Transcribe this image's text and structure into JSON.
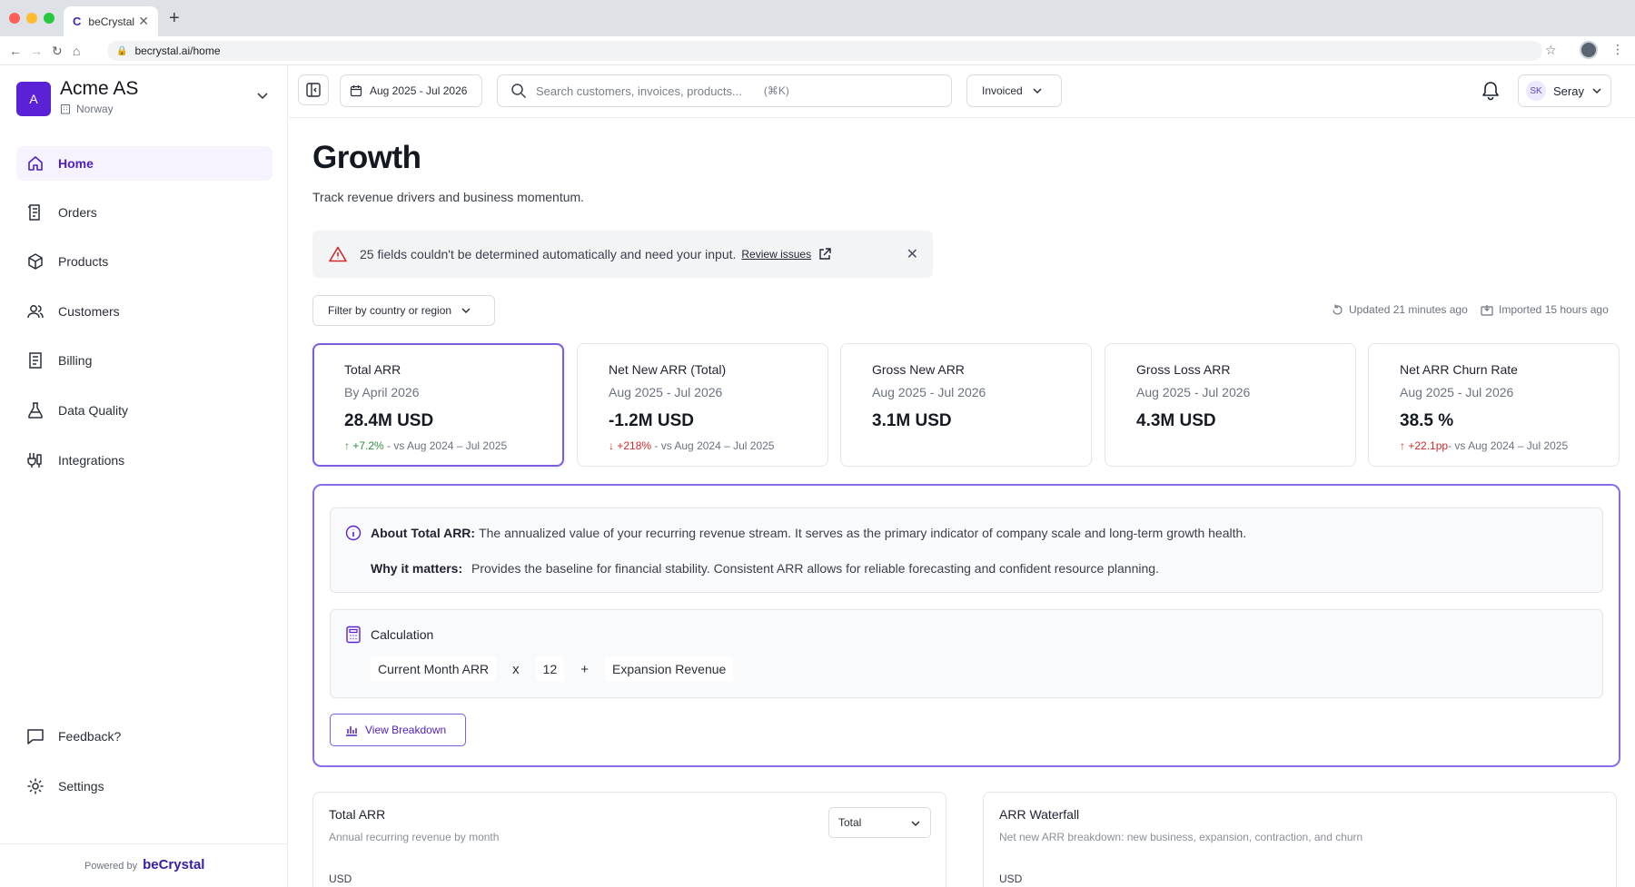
{
  "browser": {
    "tab_title": "beCrystal",
    "tab_favicon": "C",
    "url": "becrystal.ai/home"
  },
  "org": {
    "avatar_letter": "A",
    "name": "Acme AS",
    "country": "Norway"
  },
  "nav": [
    {
      "id": "home",
      "label": "Home",
      "icon": "home-icon",
      "active": true
    },
    {
      "id": "orders",
      "label": "Orders",
      "icon": "orders-icon"
    },
    {
      "id": "products",
      "label": "Products",
      "icon": "box-icon"
    },
    {
      "id": "customers",
      "label": "Customers",
      "icon": "users-icon"
    },
    {
      "id": "billing",
      "label": "Billing",
      "icon": "document-icon"
    },
    {
      "id": "data-quality",
      "label": "Data Quality",
      "icon": "flask-icon"
    },
    {
      "id": "integrations",
      "label": "Integrations",
      "icon": "plug-icon"
    }
  ],
  "nav_bottom": [
    {
      "id": "feedback",
      "label": "Feedback?",
      "icon": "message-icon"
    },
    {
      "id": "settings",
      "label": "Settings",
      "icon": "gear-icon"
    }
  ],
  "powered_by": {
    "prefix": "Powered by",
    "brand": "beCrystal"
  },
  "topbar": {
    "date_range": "Aug 2025 - Jul 2026",
    "search_placeholder": "Search customers, invoices, products...",
    "search_shortcut": "(⌘K)",
    "invoiced_label": "Invoiced",
    "user_initials": "SK",
    "user_name": "Seray"
  },
  "page": {
    "title": "Growth",
    "subtitle": "Track revenue drivers and business momentum."
  },
  "alert": {
    "message": "25 fields couldn't be determined automatically and need your input.",
    "link": "Review issues"
  },
  "filter": {
    "label": "Filter by country or region"
  },
  "status": {
    "updated": "Updated 21 minutes ago",
    "imported": "Imported 15 hours ago"
  },
  "kpis": [
    {
      "title": "Total ARR",
      "period": "By April 2026",
      "value": "28.4M USD",
      "delta": "+7.2%",
      "delta_dir": "up",
      "delta_color": "#2f8f3f",
      "compare": " - vs Aug 2024 – Jul 2025",
      "selected": true
    },
    {
      "title": "Net New ARR (Total)",
      "period": "Aug 2025 - Jul 2026",
      "value": "-1.2M USD",
      "delta": "+218%",
      "delta_dir": "down",
      "delta_color": "#d12a2a",
      "compare": " - vs Aug 2024 – Jul 2025"
    },
    {
      "title": "Gross New ARR",
      "period": "Aug 2025 - Jul 2026",
      "value": "3.1M USD"
    },
    {
      "title": "Gross Loss ARR",
      "period": "Aug 2025 - Jul 2026",
      "value": "4.3M USD"
    },
    {
      "title": "Net ARR Churn Rate",
      "period": "Aug 2025 - Jul 2026",
      "value": "38.5 %",
      "delta": "+22.1pp",
      "delta_dir": "up",
      "delta_color": "#d12a2a",
      "compare": "- vs Aug 2024 – Jul 2025"
    }
  ],
  "detail": {
    "about_label": "About Total ARR:",
    "about_text": "The annualized value of your recurring revenue stream. It serves as the primary indicator of company scale and long-term growth health.",
    "why_label": "Why it matters:",
    "why_text": "Provides the baseline for financial stability. Consistent ARR allows for reliable forecasting and confident resource planning.",
    "calc_label": "Calculation",
    "calc": {
      "term1": "Current Month ARR",
      "op1": "x",
      "term2": "12",
      "op2": "+",
      "term3": "Expansion Revenue"
    },
    "breakdown_button": "View Breakdown"
  },
  "charts": [
    {
      "title": "Total ARR",
      "subtitle": "Annual recurring revenue by month",
      "unit": "USD",
      "select": "Total"
    },
    {
      "title": "ARR Waterfall",
      "subtitle": "Net new ARR breakdown: new business, expansion, contraction, and churn",
      "unit": "USD"
    }
  ],
  "colors": {
    "accent": "#5b21d6",
    "accent_border": "#7c5ce0",
    "positive": "#2f8f3f",
    "negative": "#d12a2a"
  }
}
